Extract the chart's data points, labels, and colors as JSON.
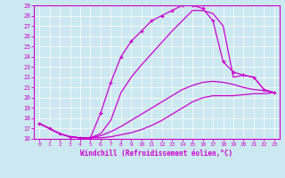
{
  "xlabel": "Windchill (Refroidissement éolien,°C)",
  "bg_color": "#cce8f0",
  "line_color": "#cc00cc",
  "grid_color": "#ffffff",
  "xlim": [
    -0.5,
    23.5
  ],
  "ylim": [
    16,
    29
  ],
  "xticks": [
    0,
    1,
    2,
    3,
    4,
    5,
    6,
    7,
    8,
    9,
    10,
    11,
    12,
    13,
    14,
    15,
    16,
    17,
    18,
    19,
    20,
    21,
    22,
    23
  ],
  "yticks": [
    16,
    17,
    18,
    19,
    20,
    21,
    22,
    23,
    24,
    25,
    26,
    27,
    28,
    29
  ],
  "line1_x": [
    0,
    1,
    2,
    3,
    4,
    5,
    6,
    7,
    8,
    9,
    10,
    11,
    12,
    13,
    14,
    15,
    16,
    17,
    18,
    19,
    20,
    21,
    22,
    23
  ],
  "line1_y": [
    17.5,
    17.0,
    16.5,
    16.2,
    16.1,
    16.1,
    16.1,
    16.2,
    16.4,
    16.6,
    16.9,
    17.3,
    17.8,
    18.4,
    19.0,
    19.6,
    20.0,
    20.2,
    20.2,
    20.2,
    20.3,
    20.4,
    20.4,
    20.5
  ],
  "line2_x": [
    0,
    1,
    2,
    3,
    4,
    5,
    6,
    7,
    8,
    9,
    10,
    11,
    12,
    13,
    14,
    15,
    16,
    17,
    18,
    19,
    20,
    21,
    22,
    23
  ],
  "line2_y": [
    17.5,
    17.0,
    16.5,
    16.2,
    16.1,
    16.1,
    16.3,
    16.7,
    17.2,
    17.8,
    18.4,
    19.0,
    19.6,
    20.2,
    20.8,
    21.2,
    21.5,
    21.6,
    21.5,
    21.3,
    21.0,
    20.8,
    20.7,
    20.5
  ],
  "line3_x": [
    0,
    1,
    2,
    3,
    4,
    5,
    6,
    7,
    8,
    9,
    10,
    11,
    12,
    13,
    14,
    15,
    16,
    17,
    18,
    19,
    20,
    21,
    22,
    23
  ],
  "line3_y": [
    17.5,
    17.0,
    16.5,
    16.2,
    16.1,
    16.1,
    18.5,
    21.5,
    24.0,
    25.5,
    26.5,
    27.5,
    28.0,
    28.5,
    29.0,
    29.0,
    28.7,
    27.5,
    23.5,
    22.5,
    22.2,
    22.0,
    20.8,
    20.5
  ],
  "line4_x": [
    0,
    1,
    2,
    3,
    4,
    5,
    6,
    7,
    8,
    9,
    10,
    11,
    12,
    13,
    14,
    15,
    16,
    17,
    18,
    19,
    20,
    21,
    22,
    23
  ],
  "line4_y": [
    17.5,
    17.0,
    16.5,
    16.2,
    16.1,
    16.1,
    16.5,
    17.8,
    20.5,
    22.0,
    23.2,
    24.3,
    25.4,
    26.5,
    27.5,
    28.5,
    28.5,
    28.2,
    27.0,
    22.0,
    22.2,
    22.0,
    20.8,
    20.5
  ]
}
